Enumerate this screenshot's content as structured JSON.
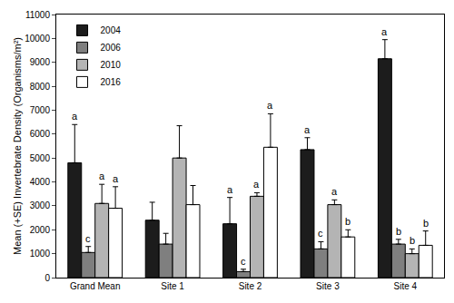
{
  "chart_data": {
    "type": "bar",
    "y_label": "Mean (+SE) Invertebrate Density (Organisms/m²)",
    "categories": [
      "Grand Mean",
      "Site 1",
      "Site 2",
      "Site 3",
      "Site 4"
    ],
    "series": [
      {
        "name": "2004",
        "color": "#1c1c1c",
        "values": [
          4800,
          2400,
          2250,
          5350,
          9150
        ],
        "errors": [
          1600,
          750,
          1100,
          500,
          800
        ],
        "letters": [
          "a",
          null,
          "a",
          "a",
          "a"
        ]
      },
      {
        "name": "2006",
        "color": "#7f7f7f",
        "values": [
          1050,
          1400,
          250,
          1200,
          1400
        ],
        "errors": [
          250,
          450,
          100,
          300,
          200
        ],
        "letters": [
          "c",
          null,
          "c",
          "c",
          "b"
        ]
      },
      {
        "name": "2010",
        "color": "#b4b4b4",
        "values": [
          3100,
          5000,
          3400,
          3050,
          1000
        ],
        "errors": [
          800,
          1350,
          150,
          200,
          200
        ],
        "letters": [
          "a",
          null,
          "a",
          "a",
          "b"
        ]
      },
      {
        "name": "2016",
        "color": "#ffffff",
        "values": [
          2900,
          3050,
          5450,
          1700,
          1350
        ],
        "errors": [
          900,
          800,
          1400,
          300,
          600
        ],
        "letters": [
          "a",
          null,
          "a",
          "b",
          "b"
        ]
      }
    ],
    "ylim": [
      0,
      11000
    ],
    "yticks": [
      0,
      1000,
      2000,
      3000,
      4000,
      5000,
      6000,
      7000,
      8000,
      9000,
      10000,
      11000
    ],
    "grid": false,
    "legend": "top-left"
  }
}
